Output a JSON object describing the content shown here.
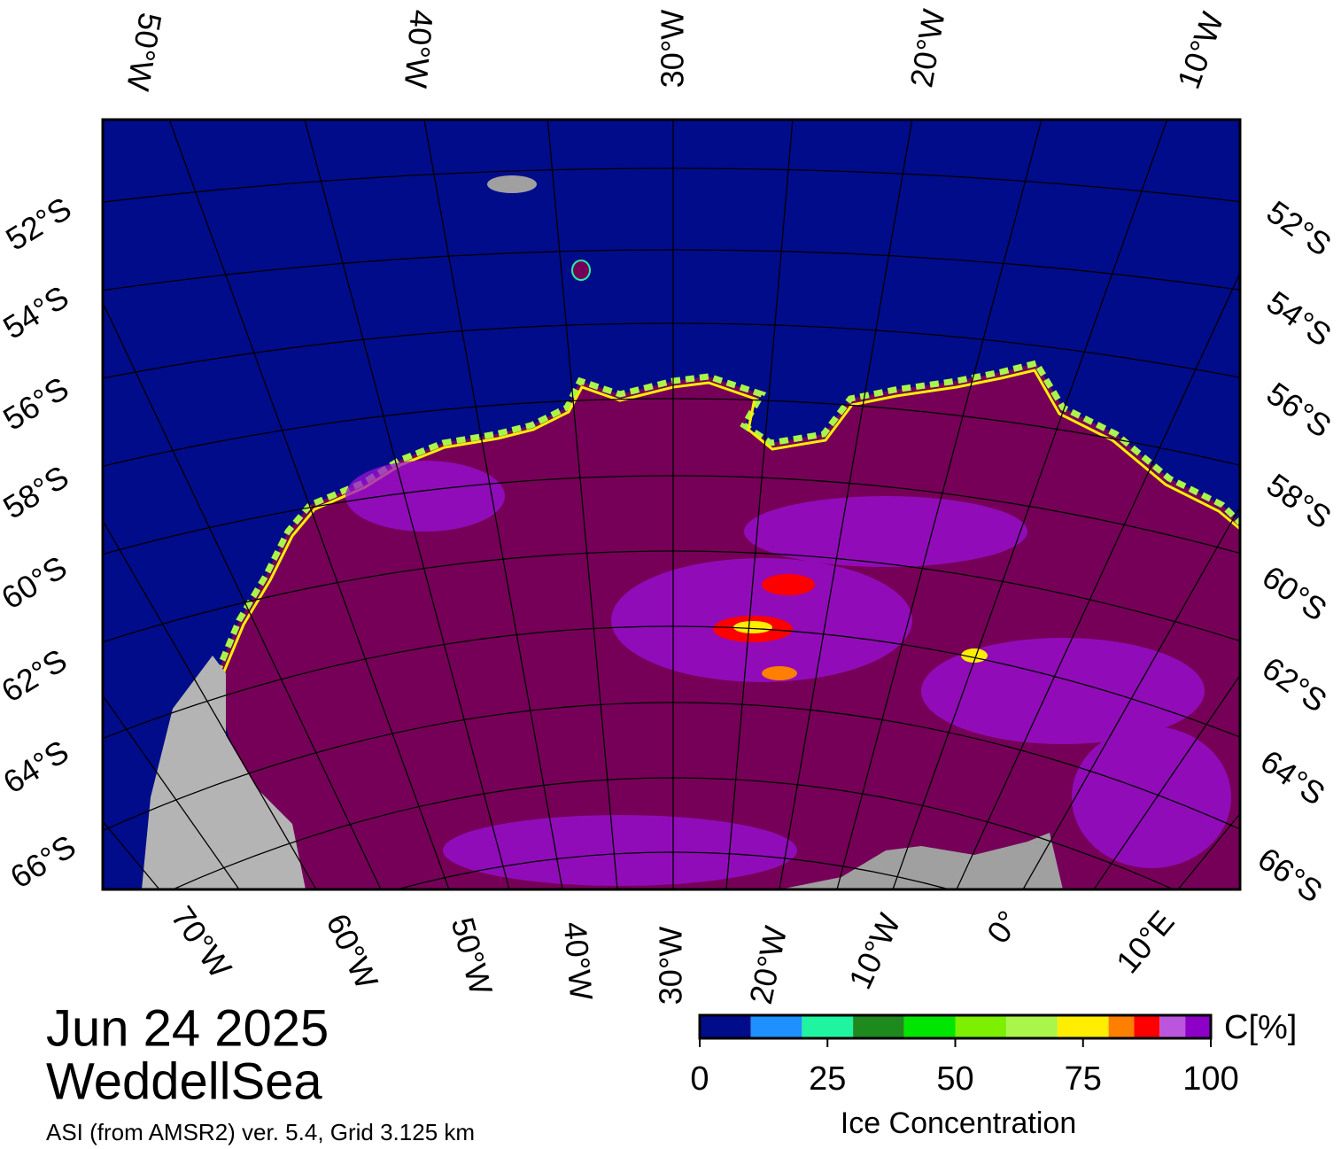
{
  "map": {
    "top_longitude_labels": [
      "50°W",
      "40°W",
      "30°W",
      "20°W",
      "10°W"
    ],
    "bottom_longitude_labels": [
      "70°W",
      "60°W",
      "50°W",
      "40°W",
      "30°W",
      "20°W",
      "10°W",
      "0°",
      "10°E"
    ],
    "left_latitude_labels": [
      "52°S",
      "54°S",
      "56°S",
      "58°S",
      "60°S",
      "62°S",
      "64°S",
      "66°S"
    ],
    "right_latitude_labels": [
      "52°S",
      "54°S",
      "56°S",
      "58°S",
      "60°S",
      "62°S",
      "64°S",
      "66°S"
    ]
  },
  "caption": {
    "date": "Jun 24 2025",
    "region": "WeddellSea",
    "source": "ASI (from AMSR2) ver. 5.4,  Grid 3.125 km"
  },
  "colorbar": {
    "unit": "C[%]",
    "title": "Ice Concentration",
    "range": [
      0,
      100
    ],
    "ticks": [
      0,
      25,
      50,
      75,
      100
    ],
    "bounds": [
      0,
      10,
      20,
      30,
      40,
      50,
      60,
      70,
      80,
      85,
      90,
      95,
      100
    ],
    "colors": [
      "#000c8a",
      "#1e90ff",
      "#1ff5a0",
      "#1e8a1e",
      "#00e600",
      "#7cf000",
      "#aaf54a",
      "#ffee00",
      "#ff7f00",
      "#ff0000",
      "#bb55dd",
      "#8c00c8"
    ]
  }
}
